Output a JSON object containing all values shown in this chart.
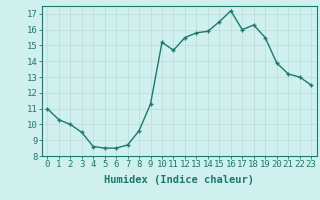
{
  "x": [
    0,
    1,
    2,
    3,
    4,
    5,
    6,
    7,
    8,
    9,
    10,
    11,
    12,
    13,
    14,
    15,
    16,
    17,
    18,
    19,
    20,
    21,
    22,
    23
  ],
  "y": [
    11,
    10.3,
    10,
    9.5,
    8.6,
    8.5,
    8.5,
    8.7,
    9.6,
    11.3,
    15.2,
    14.7,
    15.5,
    15.8,
    15.9,
    16.5,
    17.2,
    16.0,
    16.3,
    15.5,
    13.9,
    13.2,
    13.0,
    12.5
  ],
  "line_color": "#1a7a6e",
  "marker": "+",
  "markersize": 3.5,
  "linewidth": 1.0,
  "xlabel": "Humidex (Indice chaleur)",
  "xlabel_fontsize": 7.5,
  "yticks": [
    8,
    9,
    10,
    11,
    12,
    13,
    14,
    15,
    16,
    17
  ],
  "xticks": [
    0,
    1,
    2,
    3,
    4,
    5,
    6,
    7,
    8,
    9,
    10,
    11,
    12,
    13,
    14,
    15,
    16,
    17,
    18,
    19,
    20,
    21,
    22,
    23
  ],
  "xlim": [
    -0.5,
    23.5
  ],
  "ylim": [
    8,
    17.5
  ],
  "background_color": "#cff0ec",
  "grid_color": "#c0dedd",
  "tick_color": "#1a7a6e",
  "tick_fontsize": 6.5,
  "spine_color": "#1a7a6e"
}
